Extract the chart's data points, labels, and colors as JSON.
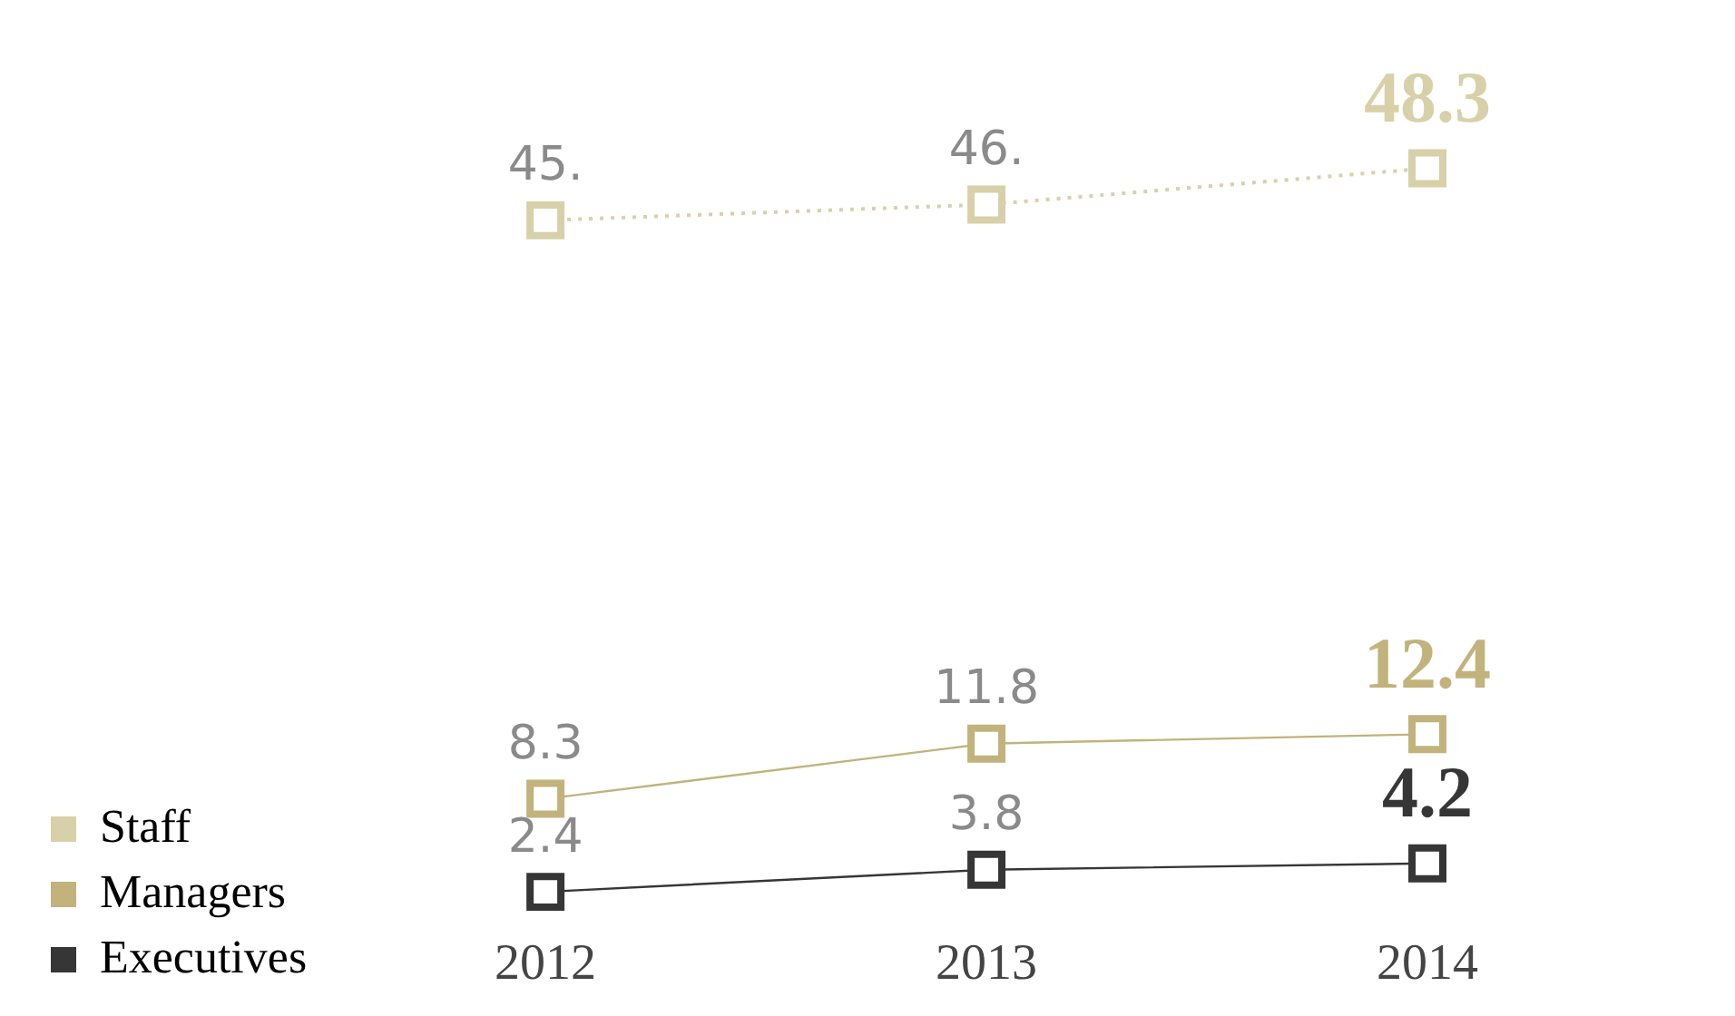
{
  "chart_data": {
    "type": "line",
    "categories": [
      "2012",
      "2013",
      "2014"
    ],
    "marker": "square",
    "legend": "bottom left",
    "grid": false,
    "tick_labels": "x",
    "series": [
      {
        "name": "Staff",
        "color": "#d8d0a8",
        "values": [
          45,
          46,
          48.3
        ],
        "value_labels": [
          "45.",
          "46.",
          "48.3"
        ],
        "line_style": "dotted"
      },
      {
        "name": "Managers",
        "color": "#c2b27c",
        "values": [
          8.3,
          11.8,
          12.4
        ],
        "value_labels": [
          "8.3",
          "11.8",
          "12.4"
        ],
        "line_style": "solid"
      },
      {
        "name": "Executives",
        "color": "#363636",
        "values": [
          2.4,
          3.8,
          4.2
        ],
        "value_labels": [
          "2.4",
          "3.8",
          "4.2"
        ],
        "line_style": "solid"
      }
    ]
  }
}
